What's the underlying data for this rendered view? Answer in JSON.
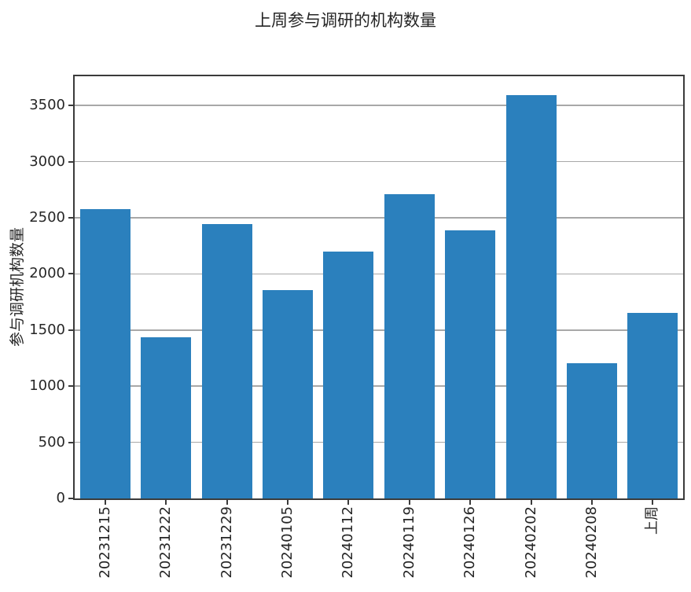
{
  "chart_data": {
    "type": "bar",
    "title": "上周参与调研的机构数量",
    "ylabel": "参与调研机构数量",
    "xlabel": "",
    "categories": [
      "20231215",
      "20231222",
      "20231229",
      "20240105",
      "20240112",
      "20240119",
      "20240126",
      "20240202",
      "20240208",
      "上周"
    ],
    "values": [
      2575,
      1435,
      2445,
      1855,
      2200,
      2710,
      2385,
      3595,
      1205,
      1650
    ],
    "yticks": [
      0,
      500,
      1000,
      1500,
      2000,
      2500,
      3000,
      3500
    ],
    "ylim": [
      0,
      3760
    ],
    "grid": true,
    "legend_position": "none",
    "colors": {
      "bar": "#2b80bd",
      "grid": "#a8a8a8",
      "spine": "#3b3b3b",
      "text": "#262626",
      "background": "#ffffff"
    }
  }
}
